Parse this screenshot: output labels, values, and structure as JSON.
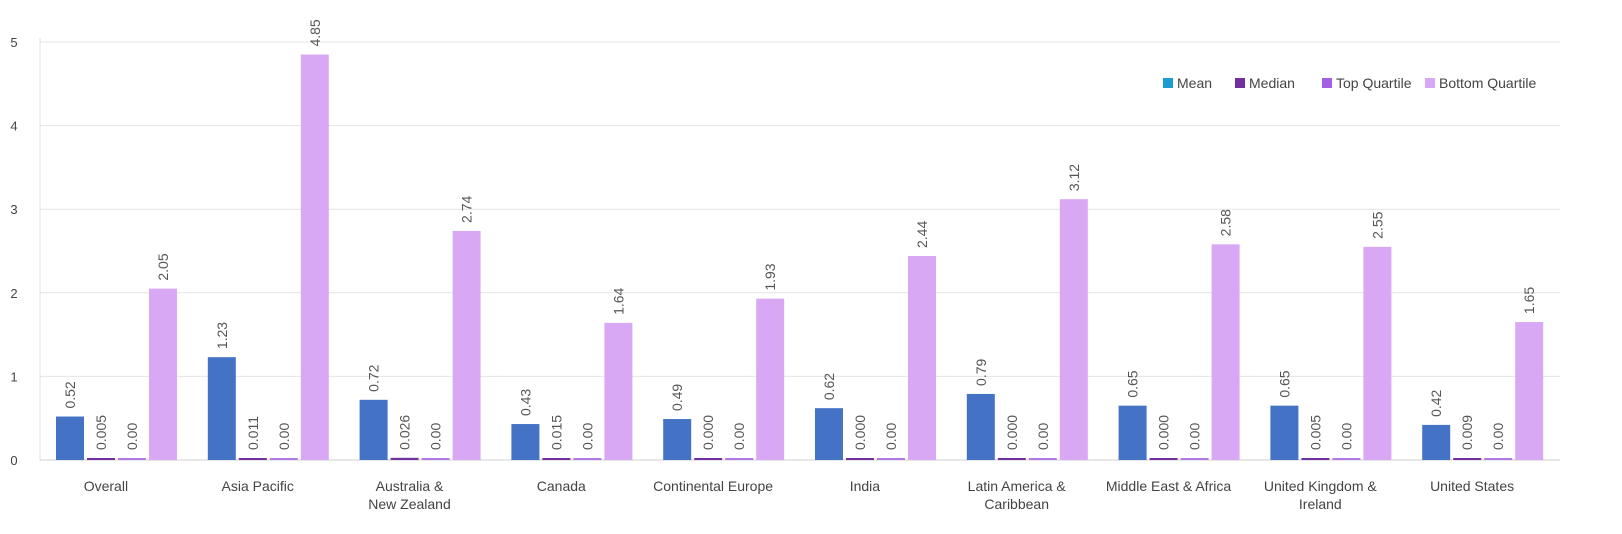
{
  "chart_data": {
    "type": "bar",
    "title": "",
    "xlabel": "",
    "ylabel": "",
    "ylim": [
      0,
      5
    ],
    "yticks": [
      0,
      1,
      2,
      3,
      4,
      5
    ],
    "grid": true,
    "legend_position": "top-right",
    "categories": [
      "Overall",
      "Asia Pacific",
      "Australia & New Zealand",
      "Canada",
      "Continental Europe",
      "India",
      "Latin America & Caribbean",
      "Middle East & Africa",
      "United Kingdom & Ireland",
      "United States"
    ],
    "category_lines": [
      [
        "Overall"
      ],
      [
        "Asia Pacific"
      ],
      [
        "Australia &",
        "New Zealand"
      ],
      [
        "Canada"
      ],
      [
        "Continental Europe"
      ],
      [
        "India"
      ],
      [
        "Latin America &",
        "Caribbean"
      ],
      [
        "Middle East & Africa"
      ],
      [
        "United Kingdom &",
        "Ireland"
      ],
      [
        "United States"
      ]
    ],
    "series": [
      {
        "name": "Mean",
        "color": "#4472c4",
        "legend_color": "#1f9bd4",
        "values": [
          0.52,
          1.23,
          0.72,
          0.43,
          0.49,
          0.62,
          0.79,
          0.65,
          0.65,
          0.42
        ],
        "labels": [
          "0.52",
          "1.23",
          "0.72",
          "0.43",
          "0.49",
          "0.62",
          "0.79",
          "0.65",
          "0.65",
          "0.42"
        ]
      },
      {
        "name": "Median",
        "color": "#7030a0",
        "legend_color": "#7030a0",
        "values": [
          0.005,
          0.011,
          0.026,
          0.015,
          0.0,
          0.0,
          0.0,
          0.0,
          0.005,
          0.009
        ],
        "labels": [
          "0.005",
          "0.011",
          "0.026",
          "0.015",
          "0.000",
          "0.000",
          "0.000",
          "0.000",
          "0.005",
          "0.009"
        ]
      },
      {
        "name": "Top Quartile",
        "color": "#b379e6",
        "legend_color": "#a55fe0",
        "values": [
          0.0,
          0.0,
          0.0,
          0.0,
          0.0,
          0.0,
          0.0,
          0.0,
          0.0,
          0.0
        ],
        "labels": [
          "0.00",
          "0.00",
          "0.00",
          "0.00",
          "0.00",
          "0.00",
          "0.00",
          "0.00",
          "0.00",
          "0.00"
        ]
      },
      {
        "name": "Bottom Quartile",
        "color": "#d9a8f5",
        "legend_color": "#d9a8f5",
        "values": [
          2.05,
          4.85,
          2.74,
          1.64,
          1.93,
          2.44,
          3.12,
          2.58,
          2.55,
          1.65
        ],
        "labels": [
          "2.05",
          "4.85",
          "2.74",
          "1.64",
          "1.93",
          "2.44",
          "3.12",
          "2.58",
          "2.55",
          "1.65"
        ]
      }
    ]
  }
}
